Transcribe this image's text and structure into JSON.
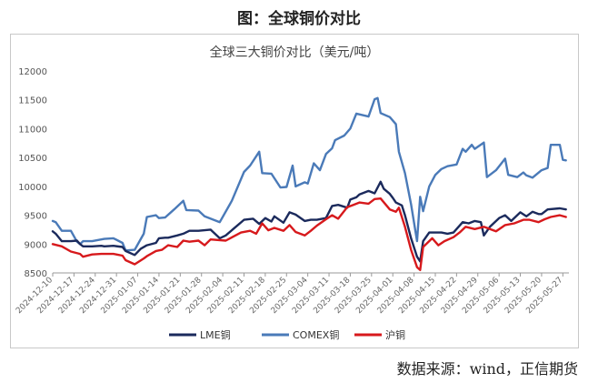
{
  "figure_title": "图：全球铜价对比",
  "source_note": "数据来源：wind，正信期货",
  "chart_data": {
    "type": "line",
    "title": "全球三大铜价对比（美元/吨）",
    "ylim": [
      8500,
      12000
    ],
    "yticks": [
      8500,
      9000,
      9500,
      10000,
      10500,
      11000,
      11500,
      12000
    ],
    "xlim": [
      "2024-12-10",
      "2025-05-29"
    ],
    "xticks": [
      "2024-12-10",
      "2024-12-17",
      "2024-12-24",
      "2024-12-31",
      "2025-01-07",
      "2025-01-14",
      "2025-01-21",
      "2025-01-28",
      "2025-02-04",
      "2025-02-11",
      "2025-02-18",
      "2025-02-25",
      "2025-03-04",
      "2025-03-11",
      "2025-03-18",
      "2025-03-25",
      "2025-04-01",
      "2025-04-08",
      "2025-04-15",
      "2025-04-22",
      "2025-04-29",
      "2025-05-06",
      "2025-05-13",
      "2025-05-20",
      "2025-05-27"
    ],
    "grid": false,
    "legend": "bottom",
    "series": [
      {
        "name": "LME铜",
        "color": "#1b2a5c",
        "points": [
          [
            "2024-12-10",
            9220
          ],
          [
            "2024-12-11",
            9180
          ],
          [
            "2024-12-13",
            9050
          ],
          [
            "2024-12-16",
            9050
          ],
          [
            "2024-12-18",
            9060
          ],
          [
            "2024-12-19",
            9000
          ],
          [
            "2024-12-20",
            8960
          ],
          [
            "2024-12-23",
            8960
          ],
          [
            "2024-12-26",
            8970
          ],
          [
            "2024-12-27",
            8960
          ],
          [
            "2024-12-30",
            8970
          ],
          [
            "2025-01-02",
            8950
          ],
          [
            "2025-01-03",
            8880
          ],
          [
            "2025-01-06",
            8810
          ],
          [
            "2025-01-08",
            8920
          ],
          [
            "2025-01-10",
            8980
          ],
          [
            "2025-01-13",
            9020
          ],
          [
            "2025-01-14",
            9100
          ],
          [
            "2025-01-16",
            9110
          ],
          [
            "2025-01-17",
            9110
          ],
          [
            "2025-01-20",
            9150
          ],
          [
            "2025-01-22",
            9180
          ],
          [
            "2025-01-24",
            9230
          ],
          [
            "2025-01-27",
            9230
          ],
          [
            "2025-01-29",
            9240
          ],
          [
            "2025-01-31",
            9250
          ],
          [
            "2025-02-03",
            9100
          ],
          [
            "2025-02-05",
            9150
          ],
          [
            "2025-02-11",
            9420
          ],
          [
            "2025-02-14",
            9440
          ],
          [
            "2025-02-16",
            9350
          ],
          [
            "2025-02-18",
            9450
          ],
          [
            "2025-02-20",
            9390
          ],
          [
            "2025-02-21",
            9480
          ],
          [
            "2025-02-24",
            9370
          ],
          [
            "2025-02-26",
            9550
          ],
          [
            "2025-02-28",
            9510
          ],
          [
            "2025-03-03",
            9400
          ],
          [
            "2025-03-05",
            9420
          ],
          [
            "2025-03-07",
            9420
          ],
          [
            "2025-03-10",
            9450
          ],
          [
            "2025-03-12",
            9660
          ],
          [
            "2025-03-14",
            9680
          ],
          [
            "2025-03-17",
            9630
          ],
          [
            "2025-03-18",
            9770
          ],
          [
            "2025-03-20",
            9810
          ],
          [
            "2025-03-21",
            9860
          ],
          [
            "2025-03-24",
            9920
          ],
          [
            "2025-03-26",
            9880
          ],
          [
            "2025-03-28",
            10080
          ],
          [
            "2025-03-29",
            9960
          ],
          [
            "2025-03-31",
            9870
          ],
          [
            "2025-04-01",
            9800
          ],
          [
            "2025-04-02",
            9720
          ],
          [
            "2025-04-04",
            9670
          ],
          [
            "2025-04-05",
            9500
          ],
          [
            "2025-04-07",
            9100
          ],
          [
            "2025-04-09",
            8780
          ],
          [
            "2025-04-10",
            8700
          ],
          [
            "2025-04-11",
            9050
          ],
          [
            "2025-04-13",
            9200
          ],
          [
            "2025-04-15",
            9200
          ],
          [
            "2025-04-17",
            9200
          ],
          [
            "2025-04-19",
            9180
          ],
          [
            "2025-04-21",
            9200
          ],
          [
            "2025-04-24",
            9380
          ],
          [
            "2025-04-26",
            9360
          ],
          [
            "2025-04-28",
            9400
          ],
          [
            "2025-04-30",
            9380
          ],
          [
            "2025-05-01",
            9150
          ],
          [
            "2025-05-03",
            9300
          ],
          [
            "2025-05-06",
            9450
          ],
          [
            "2025-05-08",
            9500
          ],
          [
            "2025-05-10",
            9400
          ],
          [
            "2025-05-13",
            9550
          ],
          [
            "2025-05-15",
            9480
          ],
          [
            "2025-05-17",
            9560
          ],
          [
            "2025-05-19",
            9520
          ],
          [
            "2025-05-20",
            9520
          ],
          [
            "2025-05-22",
            9600
          ],
          [
            "2025-05-26",
            9620
          ],
          [
            "2025-05-28",
            9600
          ]
        ]
      },
      {
        "name": "COMEX铜",
        "color": "#4a7ab8",
        "points": [
          [
            "2024-12-10",
            9400
          ],
          [
            "2024-12-11",
            9380
          ],
          [
            "2024-12-13",
            9230
          ],
          [
            "2024-12-16",
            9230
          ],
          [
            "2024-12-18",
            9040
          ],
          [
            "2024-12-19",
            9000
          ],
          [
            "2024-12-20",
            9050
          ],
          [
            "2024-12-23",
            9050
          ],
          [
            "2024-12-27",
            9090
          ],
          [
            "2024-12-30",
            9100
          ],
          [
            "2025-01-02",
            9020
          ],
          [
            "2025-01-03",
            8890
          ],
          [
            "2025-01-06",
            8900
          ],
          [
            "2025-01-09",
            9180
          ],
          [
            "2025-01-10",
            9470
          ],
          [
            "2025-01-13",
            9500
          ],
          [
            "2025-01-14",
            9450
          ],
          [
            "2025-01-16",
            9460
          ],
          [
            "2025-01-19",
            9600
          ],
          [
            "2025-01-22",
            9750
          ],
          [
            "2025-01-23",
            9590
          ],
          [
            "2025-01-27",
            9580
          ],
          [
            "2025-01-29",
            9480
          ],
          [
            "2025-02-03",
            9380
          ],
          [
            "2025-02-07",
            9750
          ],
          [
            "2025-02-11",
            10250
          ],
          [
            "2025-02-13",
            10360
          ],
          [
            "2025-02-16",
            10600
          ],
          [
            "2025-02-17",
            10230
          ],
          [
            "2025-02-20",
            10220
          ],
          [
            "2025-02-23",
            9980
          ],
          [
            "2025-02-25",
            9990
          ],
          [
            "2025-02-27",
            10360
          ],
          [
            "2025-02-28",
            10000
          ],
          [
            "2025-03-03",
            10070
          ],
          [
            "2025-03-04",
            10050
          ],
          [
            "2025-03-06",
            10400
          ],
          [
            "2025-03-08",
            10280
          ],
          [
            "2025-03-10",
            10560
          ],
          [
            "2025-03-12",
            10660
          ],
          [
            "2025-03-13",
            10800
          ],
          [
            "2025-03-16",
            10880
          ],
          [
            "2025-03-18",
            11000
          ],
          [
            "2025-03-20",
            11260
          ],
          [
            "2025-03-24",
            11210
          ],
          [
            "2025-03-26",
            11510
          ],
          [
            "2025-03-27",
            11530
          ],
          [
            "2025-03-28",
            11270
          ],
          [
            "2025-03-31",
            11200
          ],
          [
            "2025-04-02",
            11080
          ],
          [
            "2025-04-03",
            10600
          ],
          [
            "2025-04-05",
            10230
          ],
          [
            "2025-04-07",
            9690
          ],
          [
            "2025-04-09",
            9050
          ],
          [
            "2025-04-10",
            9820
          ],
          [
            "2025-04-11",
            9570
          ],
          [
            "2025-04-13",
            10000
          ],
          [
            "2025-04-15",
            10200
          ],
          [
            "2025-04-17",
            10300
          ],
          [
            "2025-04-19",
            10350
          ],
          [
            "2025-04-22",
            10380
          ],
          [
            "2025-04-24",
            10650
          ],
          [
            "2025-04-25",
            10600
          ],
          [
            "2025-04-27",
            10720
          ],
          [
            "2025-04-28",
            10650
          ],
          [
            "2025-05-01",
            10760
          ],
          [
            "2025-05-02",
            10160
          ],
          [
            "2025-05-05",
            10280
          ],
          [
            "2025-05-08",
            10480
          ],
          [
            "2025-05-09",
            10200
          ],
          [
            "2025-05-12",
            10160
          ],
          [
            "2025-05-14",
            10240
          ],
          [
            "2025-05-15",
            10190
          ],
          [
            "2025-05-17",
            10150
          ],
          [
            "2025-05-20",
            10280
          ],
          [
            "2025-05-22",
            10320
          ],
          [
            "2025-05-23",
            10720
          ],
          [
            "2025-05-26",
            10720
          ],
          [
            "2025-05-27",
            10460
          ],
          [
            "2025-05-28",
            10450
          ]
        ]
      },
      {
        "name": "沪铜",
        "color": "#d7191c",
        "points": [
          [
            "2024-12-10",
            9000
          ],
          [
            "2024-12-13",
            8960
          ],
          [
            "2024-12-16",
            8870
          ],
          [
            "2024-12-19",
            8830
          ],
          [
            "2024-12-20",
            8780
          ],
          [
            "2024-12-23",
            8820
          ],
          [
            "2024-12-26",
            8830
          ],
          [
            "2024-12-30",
            8830
          ],
          [
            "2025-01-02",
            8800
          ],
          [
            "2025-01-03",
            8720
          ],
          [
            "2025-01-06",
            8650
          ],
          [
            "2025-01-09",
            8750
          ],
          [
            "2025-01-10",
            8790
          ],
          [
            "2025-01-13",
            8880
          ],
          [
            "2025-01-15",
            8900
          ],
          [
            "2025-01-17",
            8980
          ],
          [
            "2025-01-20",
            8950
          ],
          [
            "2025-01-22",
            9060
          ],
          [
            "2025-01-24",
            9040
          ],
          [
            "2025-01-27",
            9060
          ],
          [
            "2025-01-29",
            8980
          ],
          [
            "2025-01-31",
            9080
          ],
          [
            "2025-02-05",
            9060
          ],
          [
            "2025-02-10",
            9200
          ],
          [
            "2025-02-13",
            9230
          ],
          [
            "2025-02-15",
            9180
          ],
          [
            "2025-02-17",
            9360
          ],
          [
            "2025-02-19",
            9240
          ],
          [
            "2025-02-21",
            9280
          ],
          [
            "2025-02-24",
            9230
          ],
          [
            "2025-02-26",
            9330
          ],
          [
            "2025-02-28",
            9210
          ],
          [
            "2025-03-03",
            9150
          ],
          [
            "2025-03-05",
            9230
          ],
          [
            "2025-03-07",
            9320
          ],
          [
            "2025-03-10",
            9430
          ],
          [
            "2025-03-12",
            9500
          ],
          [
            "2025-03-14",
            9440
          ],
          [
            "2025-03-17",
            9640
          ],
          [
            "2025-03-19",
            9680
          ],
          [
            "2025-03-21",
            9720
          ],
          [
            "2025-03-24",
            9700
          ],
          [
            "2025-03-26",
            9780
          ],
          [
            "2025-03-28",
            9790
          ],
          [
            "2025-03-31",
            9600
          ],
          [
            "2025-04-02",
            9560
          ],
          [
            "2025-04-03",
            9630
          ],
          [
            "2025-04-05",
            9300
          ],
          [
            "2025-04-07",
            8900
          ],
          [
            "2025-04-09",
            8600
          ],
          [
            "2025-04-10",
            8550
          ],
          [
            "2025-04-11",
            8950
          ],
          [
            "2025-04-14",
            9100
          ],
          [
            "2025-04-16",
            8980
          ],
          [
            "2025-04-18",
            9050
          ],
          [
            "2025-04-21",
            9120
          ],
          [
            "2025-04-23",
            9200
          ],
          [
            "2025-04-25",
            9300
          ],
          [
            "2025-04-28",
            9260
          ],
          [
            "2025-05-01",
            9300
          ],
          [
            "2025-05-05",
            9220
          ],
          [
            "2025-05-08",
            9330
          ],
          [
            "2025-05-11",
            9360
          ],
          [
            "2025-05-14",
            9420
          ],
          [
            "2025-05-16",
            9420
          ],
          [
            "2025-05-19",
            9380
          ],
          [
            "2025-05-21",
            9430
          ],
          [
            "2025-05-23",
            9470
          ],
          [
            "2025-05-26",
            9500
          ],
          [
            "2025-05-28",
            9470
          ]
        ]
      }
    ]
  }
}
